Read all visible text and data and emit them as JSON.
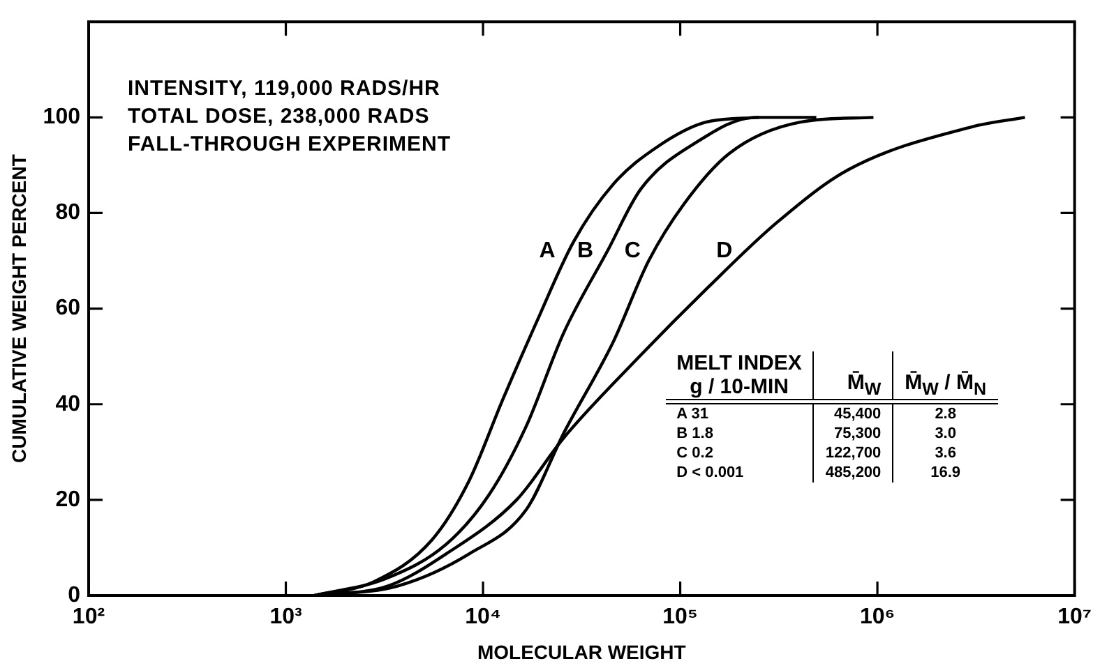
{
  "chart_data": {
    "type": "line",
    "xlabel": "MOLECULAR WEIGHT",
    "ylabel": "CUMULATIVE WEIGHT PERCENT",
    "log": "x",
    "xlim": [
      100,
      10000000
    ],
    "xticks": [
      {
        "value": 100,
        "label": "10²"
      },
      {
        "value": 1000,
        "label": "10³"
      },
      {
        "value": 10000,
        "label": "10⁴"
      },
      {
        "value": 100000,
        "label": "10⁵"
      },
      {
        "value": 1000000,
        "label": "10⁶"
      },
      {
        "value": 10000000,
        "label": "10⁷"
      }
    ],
    "ylim": [
      0,
      120
    ],
    "yticks": [
      0,
      20,
      40,
      60,
      80,
      100
    ],
    "grid": false,
    "legend": false,
    "marker": "none",
    "line_style": "solid",
    "series": [
      {
        "name": "A",
        "color": "#000000",
        "x": [
          1400,
          2800,
          5500,
          8500,
          12600,
          18600,
          28800,
          45700,
          77600,
          135000,
          250000
        ],
        "values": [
          0,
          2.9,
          11.6,
          24,
          41,
          57,
          74,
          86,
          94,
          99,
          100
        ]
      },
      {
        "name": "B",
        "color": "#000000",
        "x": [
          1400,
          3200,
          6500,
          10700,
          16600,
          25700,
          42700,
          63100,
          123000,
          240000,
          490000
        ],
        "values": [
          0,
          3.5,
          10.7,
          21,
          35.5,
          55,
          72,
          85,
          95,
          100,
          100
        ]
      },
      {
        "name": "C",
        "color": "#000000",
        "x": [
          1400,
          3700,
          8500,
          16600,
          25700,
          45700,
          69200,
          105000,
          178000,
          407000,
          955000
        ],
        "values": [
          0,
          2,
          8.7,
          18,
          34,
          53,
          70,
          82,
          92.5,
          99,
          100
        ]
      },
      {
        "name": "D",
        "color": "#000000",
        "x": [
          1400,
          3300,
          6500,
          14800,
          25700,
          58900,
          135000,
          309000,
          708000,
          3000000,
          5600000
        ],
        "values": [
          0,
          2,
          8.7,
          20,
          33,
          49,
          64,
          78,
          89,
          98,
          100
        ]
      }
    ],
    "annotations": [
      "INTENSITY, 119,000 RADS/HR",
      "TOTAL DOSE, 238,000 RADS",
      "FALL-THROUGH EXPERIMENT",
      "MELT INDEX g / 10-MIN",
      "M̄$_{W}$",
      "M̄$_{W}$ / M̄$_{N}$",
      "A   31",
      "45,400",
      "2.8",
      "B   1.8",
      "75,300",
      "3.0",
      "C   0.2",
      "122,700",
      "3.6",
      "D < 0.001",
      "485,200",
      "16.9"
    ]
  }
}
